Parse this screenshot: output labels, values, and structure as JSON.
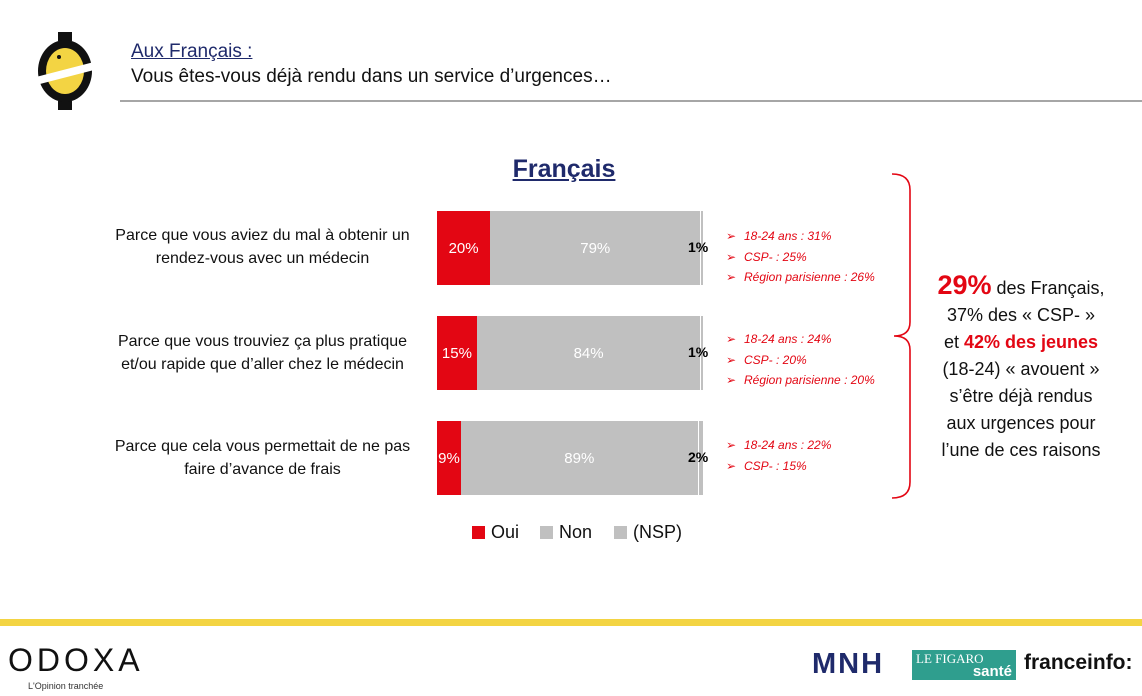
{
  "header": {
    "subtitle": "Aux Français :",
    "question": "Vous êtes-vous déjà rendu dans un service d’urgences…"
  },
  "chart_data": {
    "type": "bar",
    "orientation": "horizontal",
    "stacked": true,
    "title": "Français",
    "categories": [
      "Parce que vous aviez du mal à obtenir un rendez-vous avec un médecin",
      "Parce que vous trouviez ça plus pratique et/ou rapide que d’aller chez le médecin",
      "Parce que cela vous permettait de ne pas faire d’avance de frais"
    ],
    "category_lines": [
      [
        "Parce que vous aviez du mal à obtenir un",
        "rendez-vous avec un médecin"
      ],
      [
        "Parce que vous trouviez ça plus pratique",
        "et/ou rapide que d’aller chez le médecin"
      ],
      [
        "Parce que cela vous permettait de ne pas",
        "faire d’avance de frais"
      ]
    ],
    "series": [
      {
        "name": "Oui",
        "color": "#e30613",
        "values": [
          20,
          15,
          9
        ],
        "labels": [
          "20%",
          "15%",
          "9%"
        ]
      },
      {
        "name": "Non",
        "color": "#c0c0c0",
        "values": [
          79,
          84,
          89
        ],
        "labels": [
          "79%",
          "84%",
          "89%"
        ]
      },
      {
        "name": "(NSP)",
        "color": "#c0c0c0",
        "values": [
          1,
          1,
          2
        ],
        "labels": [
          "1%",
          "1%",
          "2%"
        ]
      }
    ],
    "xlim": [
      0,
      100
    ],
    "legend": [
      "Oui",
      "Non",
      "(NSP)"
    ],
    "legend_position": "bottom",
    "annotations": [
      [
        "18-24 ans : 31%",
        "CSP- : 25%",
        "Région parisienne : 26%"
      ],
      [
        "18-24 ans : 24%",
        "CSP- : 20%",
        "Région parisienne : 20%"
      ],
      [
        "18-24 ans : 22%",
        "CSP- : 15%"
      ]
    ]
  },
  "callout": {
    "big": "29%",
    "l1_rest": " des Français,",
    "l2": "37% des « CSP- »",
    "l3_pre": "et ",
    "l3_red": "42% des jeunes",
    "l4": "(18-24) « avouent »",
    "l5": "s’être déjà rendus",
    "l6": "aux urgences pour",
    "l7": "l’une de ces raisons"
  },
  "footer": {
    "brand": "ODOXA",
    "tagline": "L'Opinion tranchée",
    "partner1": "MNH",
    "partner2_line1": "LE FIGARO",
    "partner2_line2": "santé",
    "partner3": "franceinfo:"
  },
  "colors": {
    "accent_red": "#e30613",
    "navy": "#1f2a6b",
    "bar_grey": "#c0c0c0",
    "yellow": "#f3d443"
  }
}
